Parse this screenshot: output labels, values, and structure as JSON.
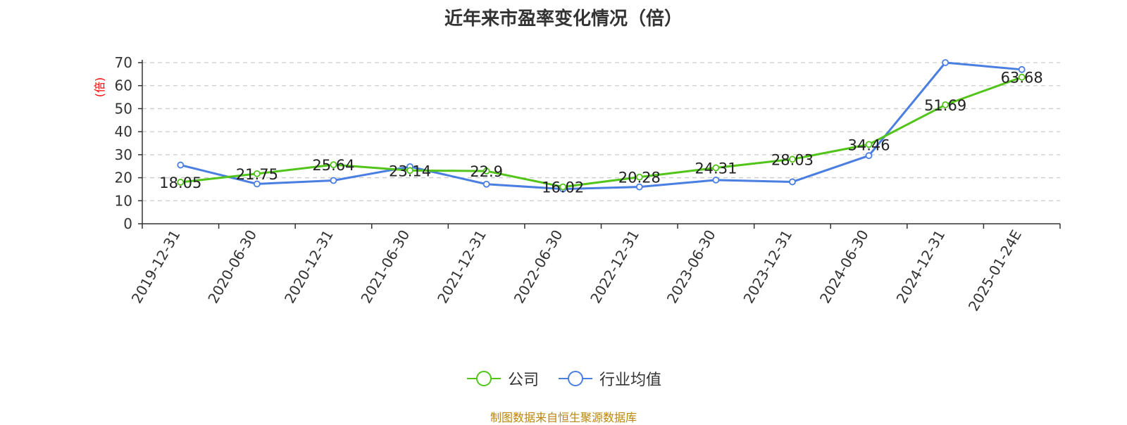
{
  "title": "近年来市盈率变化情况（倍）",
  "unit_label": "(倍)",
  "source": "制图数据来自恒生聚源数据库",
  "colors": {
    "company": "#52c41a",
    "industry": "#4a7ee0",
    "unit_label": "#ff0000",
    "source": "#b8860b",
    "grid": "#cccccc",
    "axis": "#333333"
  },
  "chart_data": {
    "type": "line",
    "title": "近年来市盈率变化情况（倍）",
    "ylabel": "(倍)",
    "xlabel": "",
    "ylim": [
      0,
      70
    ],
    "yticks": [
      0,
      10,
      20,
      30,
      40,
      50,
      60,
      70
    ],
    "grid": true,
    "legend_position": "bottom",
    "categories": [
      "2019-12-31",
      "2020-06-30",
      "2020-12-31",
      "2021-06-30",
      "2021-12-31",
      "2022-06-30",
      "2022-12-31",
      "2023-06-30",
      "2023-12-31",
      "2024-06-30",
      "2024-12-31",
      "2025-01-24E"
    ],
    "series": [
      {
        "name": "公司",
        "values": [
          18.05,
          21.75,
          25.64,
          23.14,
          22.9,
          16.02,
          20.28,
          24.31,
          28.03,
          34.46,
          51.69,
          63.68
        ],
        "labels": [
          "18.05",
          "21.75",
          "25.64",
          "23.14",
          "22.9",
          "16.02",
          "20.28",
          "24.31",
          "28.03",
          "34.46",
          "51.69",
          "63.68"
        ]
      },
      {
        "name": "行业均值",
        "values": [
          25.5,
          17.3,
          18.8,
          24.8,
          17.2,
          15.1,
          16.0,
          19.0,
          18.2,
          29.6,
          70.0,
          67.0
        ]
      }
    ]
  }
}
